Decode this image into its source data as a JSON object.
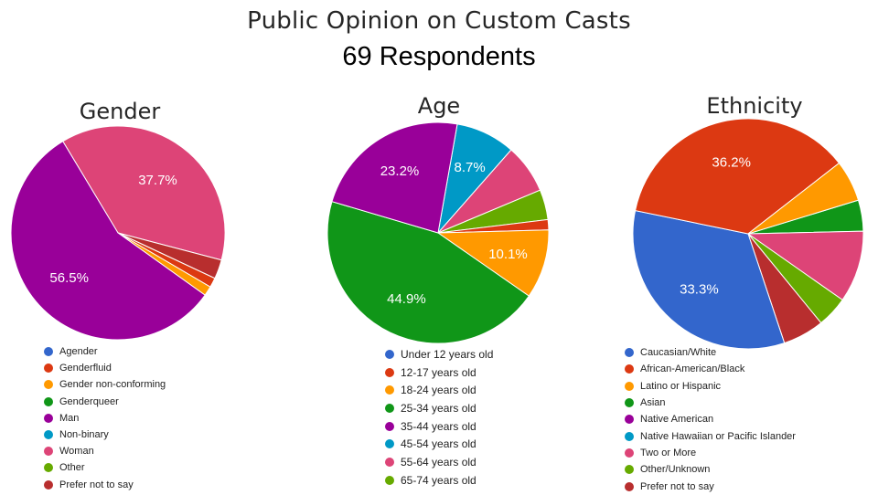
{
  "title": "Public Opinion on Custom Casts",
  "subtitle": "69 Respondents",
  "chart_data": [
    {
      "type": "pie",
      "title": "Gender",
      "labels": [
        "Agender",
        "Genderfluid",
        "Gender non-conforming",
        "Genderqueer",
        "Man",
        "Non-binary",
        "Woman",
        "Other",
        "Prefer not to say"
      ],
      "colors": [
        "#3366cc",
        "#dc3912",
        "#ff9900",
        "#109618",
        "#990099",
        "#0099c6",
        "#dd4477",
        "#66aa00",
        "#b82e2e"
      ],
      "slices": [
        {
          "label": "Woman",
          "value": 37.7,
          "display": "37.7%"
        },
        {
          "label": "Prefer not to say",
          "value": 2.9,
          "display": ""
        },
        {
          "label": "Genderfluid",
          "value": 1.45,
          "display": ""
        },
        {
          "label": "Gender non-conforming",
          "value": 1.45,
          "display": ""
        },
        {
          "label": "Man",
          "value": 56.5,
          "display": "56.5%"
        }
      ]
    },
    {
      "type": "pie",
      "title": "Age",
      "labels": [
        "Under 12 years old",
        "12-17 years old",
        "18-24 years old",
        "25-34 years old",
        "35-44 years old",
        "45-54 years old",
        "55-64 years old",
        "65-74 years old"
      ],
      "colors": [
        "#3366cc",
        "#dc3912",
        "#ff9900",
        "#109618",
        "#990099",
        "#0099c6",
        "#dd4477",
        "#66aa00"
      ],
      "slices": [
        {
          "label": "45-54 years old",
          "value": 8.7,
          "display": "8.7%"
        },
        {
          "label": "55-64 years old",
          "value": 7.2,
          "display": ""
        },
        {
          "label": "65-74 years old",
          "value": 4.4,
          "display": ""
        },
        {
          "label": "12-17 years old",
          "value": 1.5,
          "display": ""
        },
        {
          "label": "18-24 years old",
          "value": 10.1,
          "display": "10.1%"
        },
        {
          "label": "25-34 years old",
          "value": 44.9,
          "display": "44.9%"
        },
        {
          "label": "35-44 years old",
          "value": 23.2,
          "display": "23.2%"
        }
      ]
    },
    {
      "type": "pie",
      "title": "Ethnicity",
      "labels": [
        "Caucasian/White",
        "African-American/Black",
        "Latino or Hispanic",
        "Asian",
        "Native American",
        "Native Hawaiian or Pacific Islander",
        "Two or More",
        "Other/Unknown",
        "Prefer not to say"
      ],
      "colors": [
        "#3366cc",
        "#dc3912",
        "#ff9900",
        "#109618",
        "#990099",
        "#0099c6",
        "#dd4477",
        "#66aa00",
        "#b82e2e"
      ],
      "slices": [
        {
          "label": "Asian",
          "value": 4.35,
          "display": ""
        },
        {
          "label": "Two or More",
          "value": 10.1,
          "display": ""
        },
        {
          "label": "Other/Unknown",
          "value": 4.35,
          "display": ""
        },
        {
          "label": "Prefer not to say",
          "value": 5.8,
          "display": ""
        },
        {
          "label": "Caucasian/White",
          "value": 33.3,
          "display": "33.3%"
        },
        {
          "label": "African-American/Black",
          "value": 36.2,
          "display": "36.2%"
        },
        {
          "label": "Latino or Hispanic",
          "value": 5.8,
          "display": ""
        }
      ]
    }
  ]
}
